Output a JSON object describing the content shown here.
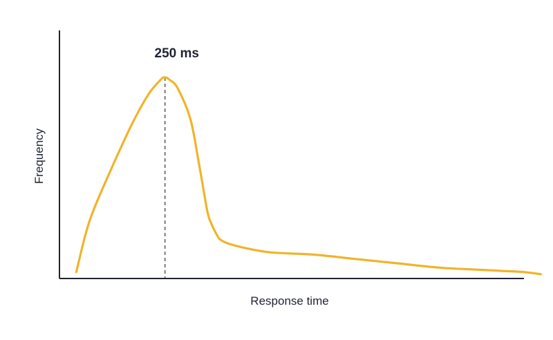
{
  "chart_data": {
    "type": "line",
    "title": "",
    "xlabel": "Response time",
    "ylabel": "Frequency",
    "xlim": [
      0,
      1100
    ],
    "ylim": [
      0,
      100
    ],
    "grid": false,
    "legend": "none",
    "color": "#F0B429",
    "annotation": {
      "label": "250 ms",
      "x": 250
    },
    "series": [
      {
        "x": [
          40,
          60,
          80,
          120,
          170,
          210,
          240,
          250,
          260,
          280,
          310,
          330,
          350,
          360,
          370,
          380,
          400,
          440,
          500,
          600,
          700,
          800,
          900,
          1000,
          1050,
          1100,
          1140
        ],
        "y": [
          2,
          18,
          30,
          48,
          69,
          83,
          90,
          91,
          90,
          86,
          72,
          52,
          30,
          24,
          20,
          17,
          15,
          13,
          11,
          10,
          8,
          6,
          4,
          3,
          2.5,
          2,
          1
        ]
      }
    ]
  }
}
